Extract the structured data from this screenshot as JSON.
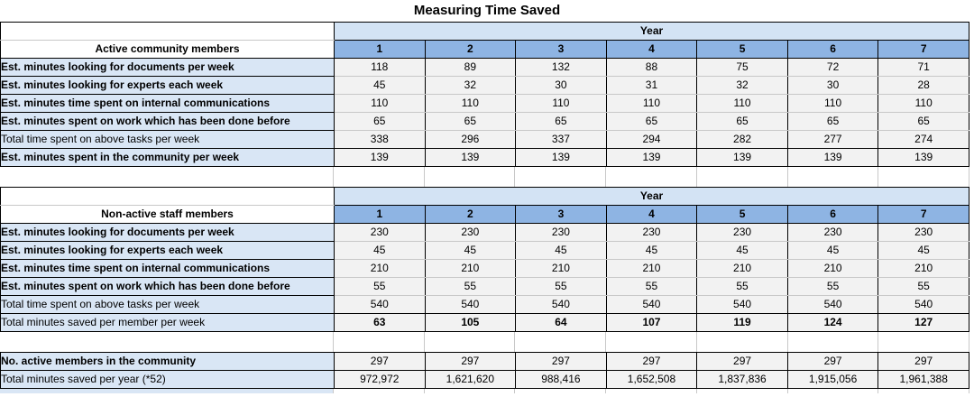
{
  "title": "Measuring Time Saved",
  "colors": {
    "year_band": "#d3e3f4",
    "header_blue": "#8eb4e3",
    "label_blue": "#d9e6f5",
    "cell_bg": "#f2f2f2",
    "gridline": "#c8c8c8",
    "border": "#000000"
  },
  "year_header": {
    "label": "Year",
    "columns": [
      "1",
      "2",
      "3",
      "4",
      "5",
      "6",
      "7"
    ]
  },
  "sections": [
    {
      "header": "Active community members",
      "rows": [
        {
          "label": "Est. minutes looking for documents per week",
          "label_bold": true,
          "values_bold": false,
          "group": "est",
          "values": [
            "118",
            "89",
            "132",
            "88",
            "75",
            "72",
            "71"
          ]
        },
        {
          "label": "Est. minutes looking for experts each week",
          "label_bold": true,
          "values_bold": false,
          "group": "est",
          "values": [
            "45",
            "32",
            "30",
            "31",
            "32",
            "30",
            "28"
          ]
        },
        {
          "label": "Est. minutes time spent on internal communications",
          "label_bold": true,
          "values_bold": false,
          "group": "est",
          "values": [
            "110",
            "110",
            "110",
            "110",
            "110",
            "110",
            "110"
          ]
        },
        {
          "label": "Est. minutes spent on work which has been done before",
          "label_bold": true,
          "values_bold": false,
          "group": "est",
          "values": [
            "65",
            "65",
            "65",
            "65",
            "65",
            "65",
            "65"
          ]
        },
        {
          "label": "Total time spent on above tasks per week",
          "label_bold": false,
          "values_bold": false,
          "group": "total",
          "values": [
            "338",
            "296",
            "337",
            "294",
            "282",
            "277",
            "274"
          ]
        },
        {
          "label": "Est. minutes spent in the community per week",
          "label_bold": true,
          "values_bold": false,
          "group": "total",
          "values": [
            "139",
            "139",
            "139",
            "139",
            "139",
            "139",
            "139"
          ]
        }
      ]
    },
    {
      "header": "Non-active staff members",
      "rows": [
        {
          "label": "Est. minutes looking for documents per week",
          "label_bold": true,
          "values_bold": false,
          "group": "est",
          "values": [
            "230",
            "230",
            "230",
            "230",
            "230",
            "230",
            "230"
          ]
        },
        {
          "label": "Est. minutes looking for experts each week",
          "label_bold": true,
          "values_bold": false,
          "group": "est",
          "values": [
            "45",
            "45",
            "45",
            "45",
            "45",
            "45",
            "45"
          ]
        },
        {
          "label": "Est. minutes time spent on internal communications",
          "label_bold": true,
          "values_bold": false,
          "group": "est",
          "values": [
            "210",
            "210",
            "210",
            "210",
            "210",
            "210",
            "210"
          ]
        },
        {
          "label": "Est. minutes spent on work which has been done before",
          "label_bold": true,
          "values_bold": false,
          "group": "est",
          "values": [
            "55",
            "55",
            "55",
            "55",
            "55",
            "55",
            "55"
          ]
        },
        {
          "label": "Total time spent on above tasks per week",
          "label_bold": false,
          "values_bold": false,
          "group": "total",
          "values": [
            "540",
            "540",
            "540",
            "540",
            "540",
            "540",
            "540"
          ]
        },
        {
          "label": "Total minutes saved per member per week",
          "label_bold": false,
          "values_bold": true,
          "group": "total",
          "values": [
            "63",
            "105",
            "64",
            "107",
            "119",
            "124",
            "127"
          ]
        }
      ]
    }
  ],
  "summary": {
    "rows": [
      {
        "label": "No. active members in the community",
        "label_bold": true,
        "values_bold": false,
        "group": "total",
        "values": [
          "297",
          "297",
          "297",
          "297",
          "297",
          "297",
          "297"
        ]
      },
      {
        "label": "Total minutes saved per year (*52)",
        "label_bold": false,
        "values_bold": false,
        "group": "total",
        "values": [
          "972,972",
          "1,621,620",
          "988,416",
          "1,652,508",
          "1,837,836",
          "1,915,056",
          "1,961,388"
        ]
      }
    ]
  }
}
